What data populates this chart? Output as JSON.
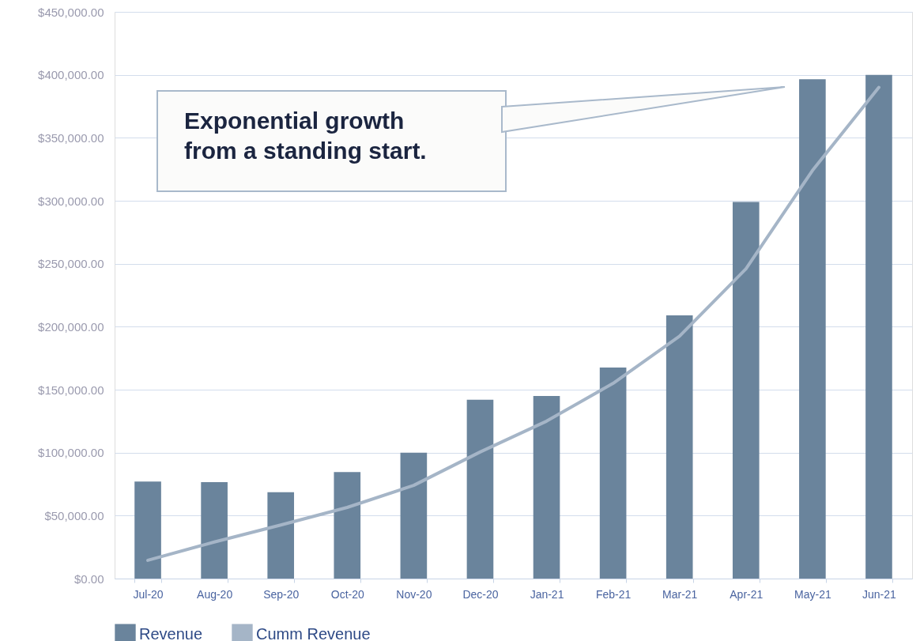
{
  "chart_data": {
    "type": "bar",
    "categories": [
      "Jul-20",
      "Aug-20",
      "Sep-20",
      "Oct-20",
      "Nov-20",
      "Dec-20",
      "Jan-21",
      "Feb-21",
      "Mar-21",
      "Apr-21",
      "May-21",
      "Jun-21"
    ],
    "series": [
      {
        "name": "Revenue",
        "color": "#6a849c",
        "values": [
          77000,
          76500,
          68500,
          84500,
          100000,
          142000,
          145000,
          167500,
          209000,
          299000,
          396500,
          400000
        ]
      },
      {
        "name": "Cumm Revenue",
        "type": "line",
        "color": "#a5b5c7",
        "values": [
          14500,
          29000,
          42500,
          56500,
          74000,
          100500,
          125000,
          155000,
          192500,
          246000,
          324000,
          390000
        ]
      }
    ],
    "ylim": [
      0,
      450000
    ],
    "yticks": [
      {
        "value": 0,
        "label": "$0.00"
      },
      {
        "value": 50000,
        "label": "$50,000.00"
      },
      {
        "value": 100000,
        "label": "$100,000.00"
      },
      {
        "value": 150000,
        "label": "$150,000.00"
      },
      {
        "value": 200000,
        "label": "$200,000.00"
      },
      {
        "value": 250000,
        "label": "$250,000.00"
      },
      {
        "value": 300000,
        "label": "$300,000.00"
      },
      {
        "value": 350000,
        "label": "$350,000.00"
      },
      {
        "value": 400000,
        "label": "$400,000.00"
      },
      {
        "value": 450000,
        "label": "$450,000.00"
      }
    ],
    "grid": "y",
    "legend": "bottom",
    "annotations": [
      "Exponential growth\nfrom a standing start."
    ]
  }
}
